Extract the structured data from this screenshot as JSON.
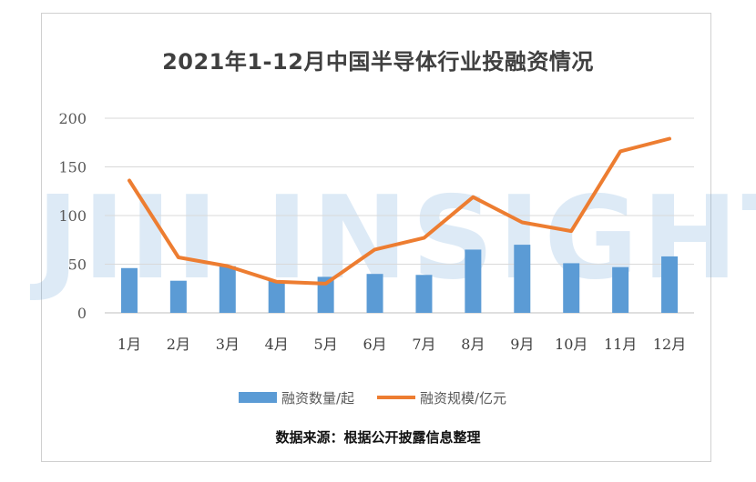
{
  "chart_data": {
    "type": "bar",
    "title": "2021年1-12月中国半导体行业投融资情况",
    "source": "数据来源：根据公开披露信息整理",
    "watermark": "JIII INSIGHTS",
    "categories": [
      "1月",
      "2月",
      "3月",
      "4月",
      "5月",
      "6月",
      "7月",
      "8月",
      "9月",
      "10月",
      "11月",
      "12月"
    ],
    "series": [
      {
        "name": "融资数量/起",
        "type": "bar",
        "color": "#5b9bd5",
        "values": [
          46,
          33,
          48,
          33,
          37,
          40,
          39,
          65,
          70,
          51,
          47,
          58
        ]
      },
      {
        "name": "融资规模/亿元",
        "type": "line",
        "color": "#ed7d31",
        "values": [
          136,
          57,
          48,
          32,
          30,
          65,
          77,
          119,
          93,
          84,
          166,
          179
        ]
      }
    ],
    "yticks": [
      "0",
      "50",
      "100",
      "150",
      "200"
    ],
    "ylim": [
      0,
      200
    ],
    "grid": true,
    "legend_position": "bottom"
  }
}
